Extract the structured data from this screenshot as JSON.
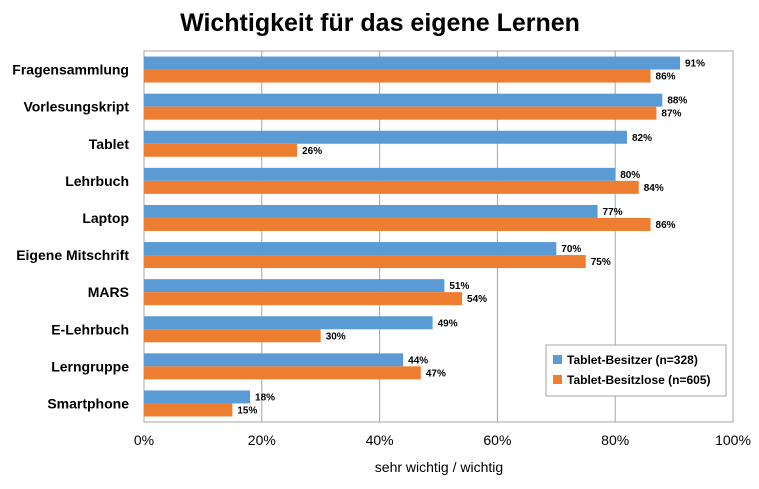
{
  "chart_data": {
    "type": "bar",
    "orientation": "horizontal",
    "title": "Wichtigkeit für das eigene Lernen",
    "xlabel": "sehr wichtig / wichtig",
    "ylabel": "",
    "xlim": [
      0,
      100
    ],
    "x_ticks": [
      "0%",
      "20%",
      "40%",
      "60%",
      "80%",
      "100%"
    ],
    "grid": true,
    "legend_position": "bottom-right",
    "categories": [
      "Fragensammlung",
      "Vorlesungskript",
      "Tablet",
      "Lehrbuch",
      "Laptop",
      "Eigene Mitschrift",
      "MARS",
      "E-Lehrbuch",
      "Lerngruppe",
      "Smartphone"
    ],
    "series": [
      {
        "name": "Tablet-Besitzer (n=328)",
        "color": "#5B9BD5",
        "values": [
          91,
          88,
          82,
          80,
          77,
          70,
          51,
          49,
          44,
          18
        ],
        "labels": [
          "91%",
          "88%",
          "82%",
          "80%",
          "77%",
          "70%",
          "51%",
          "49%",
          "44%",
          "18%"
        ]
      },
      {
        "name": "Tablet-Besitzlose (n=605)",
        "color": "#ED7D31",
        "values": [
          86,
          87,
          26,
          84,
          86,
          75,
          54,
          30,
          47,
          15
        ],
        "labels": [
          "86%",
          "87%",
          "26%",
          "84%",
          "86%",
          "75%",
          "54%",
          "30%",
          "47%",
          "15%"
        ]
      }
    ]
  }
}
